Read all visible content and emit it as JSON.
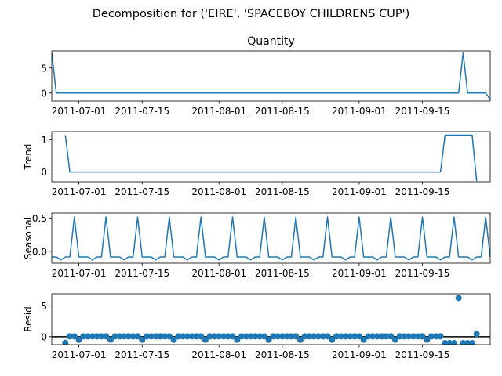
{
  "figure_title": "Decomposition for ('EIRE', 'SPACEBOY CHILDRENS CUP')",
  "line_color": "#1f77b4",
  "chart_data": [
    {
      "id": "quantity",
      "type": "line",
      "title": "Quantity",
      "ylabel": "",
      "ylim": [
        -1.6,
        8.4
      ],
      "yticks": [
        0,
        5
      ],
      "x_start": "2011-06-25",
      "xlim_days": [
        0,
        97
      ],
      "xticks": [
        "2011-07-01",
        "2011-07-15",
        "2011-08-01",
        "2011-08-15",
        "2011-09-01",
        "2011-09-15"
      ],
      "series": [
        {
          "segments": [
            [
              [
                0,
                8
              ],
              [
                1,
                0
              ],
              [
                90,
                0
              ],
              [
                91,
                8
              ],
              [
                92,
                0
              ],
              [
                96,
                0
              ],
              [
                97,
                -1.3
              ]
            ]
          ]
        }
      ]
    },
    {
      "id": "trend",
      "type": "line",
      "title": "",
      "ylabel": "Trend",
      "ylim": [
        -0.3,
        1.25
      ],
      "yticks": [
        0,
        1
      ],
      "x_start": "2011-06-25",
      "xlim_days": [
        0,
        97
      ],
      "xticks": [
        "2011-07-01",
        "2011-07-15",
        "2011-08-01",
        "2011-08-15",
        "2011-09-01",
        "2011-09-15"
      ],
      "series": [
        {
          "segments": [
            [
              [
                3,
                1.14
              ],
              [
                4,
                0
              ],
              [
                86,
                0
              ],
              [
                87,
                1.14
              ],
              [
                93,
                1.14
              ],
              [
                94,
                -0.28
              ]
            ]
          ]
        }
      ]
    },
    {
      "id": "seasonal",
      "type": "line",
      "title": "",
      "ylabel": "Seasonal",
      "ylim": [
        -0.18,
        0.58
      ],
      "yticks": [
        0.0,
        0.5
      ],
      "ytick_format": 1,
      "x_start": "2011-06-25",
      "xlim_days": [
        0,
        97
      ],
      "period": 7,
      "pattern": [
        -0.085,
        -0.085,
        -0.13,
        -0.085,
        -0.085,
        0.52,
        -0.085
      ],
      "pattern_offset": 0,
      "xticks": [
        "2011-07-01",
        "2011-07-15",
        "2011-08-01",
        "2011-08-15",
        "2011-09-01",
        "2011-09-15"
      ]
    },
    {
      "id": "resid",
      "type": "scatter",
      "title": "",
      "ylabel": "Resid",
      "ylim": [
        -1.3,
        7.0
      ],
      "yticks": [
        0,
        5
      ],
      "zero_line": true,
      "x_start": "2011-06-25",
      "xlim_days": [
        0,
        97
      ],
      "xticks": [
        "2011-07-01",
        "2011-07-15",
        "2011-08-01",
        "2011-08-15",
        "2011-09-01",
        "2011-09-15"
      ],
      "points": [
        [
          3,
          -1.0
        ],
        [
          4,
          0.05
        ],
        [
          5,
          0.05
        ],
        [
          6,
          -0.5
        ],
        [
          7,
          0.05
        ],
        [
          8,
          0.05
        ],
        [
          9,
          0.05
        ],
        [
          10,
          0.05
        ],
        [
          11,
          0.05
        ],
        [
          12,
          0.05
        ],
        [
          13,
          -0.5
        ],
        [
          14,
          0.05
        ],
        [
          15,
          0.05
        ],
        [
          16,
          0.05
        ],
        [
          17,
          0.05
        ],
        [
          18,
          0.05
        ],
        [
          19,
          0.05
        ],
        [
          20,
          -0.5
        ],
        [
          21,
          0.05
        ],
        [
          22,
          0.05
        ],
        [
          23,
          0.05
        ],
        [
          24,
          0.05
        ],
        [
          25,
          0.05
        ],
        [
          26,
          0.05
        ],
        [
          27,
          -0.5
        ],
        [
          28,
          0.05
        ],
        [
          29,
          0.05
        ],
        [
          30,
          0.05
        ],
        [
          31,
          0.05
        ],
        [
          32,
          0.05
        ],
        [
          33,
          0.05
        ],
        [
          34,
          -0.5
        ],
        [
          35,
          0.05
        ],
        [
          36,
          0.05
        ],
        [
          37,
          0.05
        ],
        [
          38,
          0.05
        ],
        [
          39,
          0.05
        ],
        [
          40,
          0.05
        ],
        [
          41,
          -0.5
        ],
        [
          42,
          0.05
        ],
        [
          43,
          0.05
        ],
        [
          44,
          0.05
        ],
        [
          45,
          0.05
        ],
        [
          46,
          0.05
        ],
        [
          47,
          0.05
        ],
        [
          48,
          -0.5
        ],
        [
          49,
          0.05
        ],
        [
          50,
          0.05
        ],
        [
          51,
          0.05
        ],
        [
          52,
          0.05
        ],
        [
          53,
          0.05
        ],
        [
          54,
          0.05
        ],
        [
          55,
          -0.5
        ],
        [
          56,
          0.05
        ],
        [
          57,
          0.05
        ],
        [
          58,
          0.05
        ],
        [
          59,
          0.05
        ],
        [
          60,
          0.05
        ],
        [
          61,
          0.05
        ],
        [
          62,
          -0.5
        ],
        [
          63,
          0.05
        ],
        [
          64,
          0.05
        ],
        [
          65,
          0.05
        ],
        [
          66,
          0.05
        ],
        [
          67,
          0.05
        ],
        [
          68,
          0.05
        ],
        [
          69,
          -0.5
        ],
        [
          70,
          0.05
        ],
        [
          71,
          0.05
        ],
        [
          72,
          0.05
        ],
        [
          73,
          0.05
        ],
        [
          74,
          0.05
        ],
        [
          75,
          0.05
        ],
        [
          76,
          -0.5
        ],
        [
          77,
          0.05
        ],
        [
          78,
          0.05
        ],
        [
          79,
          0.05
        ],
        [
          80,
          0.05
        ],
        [
          81,
          0.05
        ],
        [
          82,
          0.05
        ],
        [
          83,
          -0.5
        ],
        [
          84,
          0.05
        ],
        [
          85,
          0.05
        ],
        [
          86,
          0.05
        ],
        [
          87,
          -1.05
        ],
        [
          88,
          -1.05
        ],
        [
          89,
          -1.05
        ],
        [
          90,
          6.3
        ],
        [
          91,
          -1.05
        ],
        [
          92,
          -1.05
        ],
        [
          93,
          -1.05
        ],
        [
          94,
          0.45
        ]
      ]
    }
  ]
}
